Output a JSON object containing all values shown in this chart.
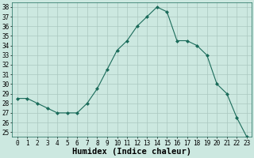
{
  "x": [
    0,
    1,
    2,
    3,
    4,
    5,
    6,
    7,
    8,
    9,
    10,
    11,
    12,
    13,
    14,
    15,
    16,
    17,
    18,
    19,
    20,
    21,
    22,
    23
  ],
  "y": [
    28.5,
    28.5,
    28.0,
    27.5,
    27.0,
    27.0,
    27.0,
    28.0,
    29.5,
    31.5,
    33.5,
    34.5,
    36.0,
    37.0,
    38.0,
    37.5,
    34.5,
    34.5,
    34.0,
    33.0,
    30.0,
    29.0,
    26.5,
    24.5
  ],
  "line_color": "#1a6b5a",
  "marker": "D",
  "marker_size": 2,
  "bg_color": "#cce8e0",
  "grid_color": "#aac8c0",
  "xlabel": "Humidex (Indice chaleur)",
  "ylim_min": 24.5,
  "ylim_max": 38.5,
  "xlim_min": -0.5,
  "xlim_max": 23.5,
  "yticks": [
    25,
    26,
    27,
    28,
    29,
    30,
    31,
    32,
    33,
    34,
    35,
    36,
    37,
    38
  ],
  "xticks": [
    0,
    1,
    2,
    3,
    4,
    5,
    6,
    7,
    8,
    9,
    10,
    11,
    12,
    13,
    14,
    15,
    16,
    17,
    18,
    19,
    20,
    21,
    22,
    23
  ],
  "tick_fontsize": 5.5,
  "label_fontsize": 7.5
}
